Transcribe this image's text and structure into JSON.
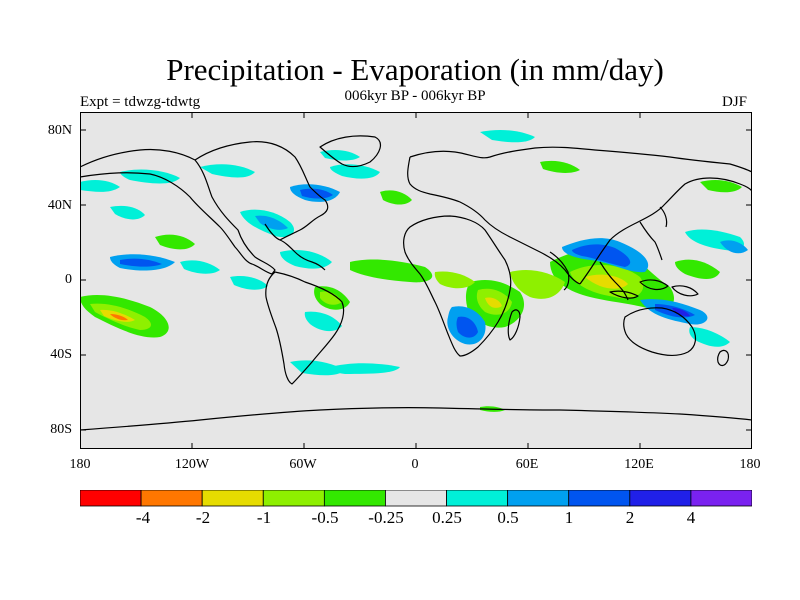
{
  "title": "Precipitation - Evaporation (in mm/day)",
  "subtitle": "006kyr BP - 006kyr BP",
  "experiment": "Expt = tdwzg-tdwtg",
  "season": "DJF",
  "lat_ticks": [
    "80N",
    "40N",
    "0",
    "40S",
    "80S"
  ],
  "lon_ticks": [
    "180",
    "120W",
    "60W",
    "0",
    "60E",
    "120E",
    "180"
  ],
  "colorbar": {
    "colors": [
      "#ff0000",
      "#ff7700",
      "#e6dc00",
      "#8ef000",
      "#33e800",
      "#e6e6e6",
      "#00f0d8",
      "#00a0f0",
      "#0055f0",
      "#2020e8",
      "#7a22f0"
    ],
    "labels": [
      "-4",
      "-2",
      "-1",
      "-0.5",
      "-0.25",
      "0.25",
      "0.5",
      "1",
      "2",
      "4"
    ]
  },
  "map_colors": {
    "background": "#e6e6e6",
    "coast": "#000000"
  }
}
